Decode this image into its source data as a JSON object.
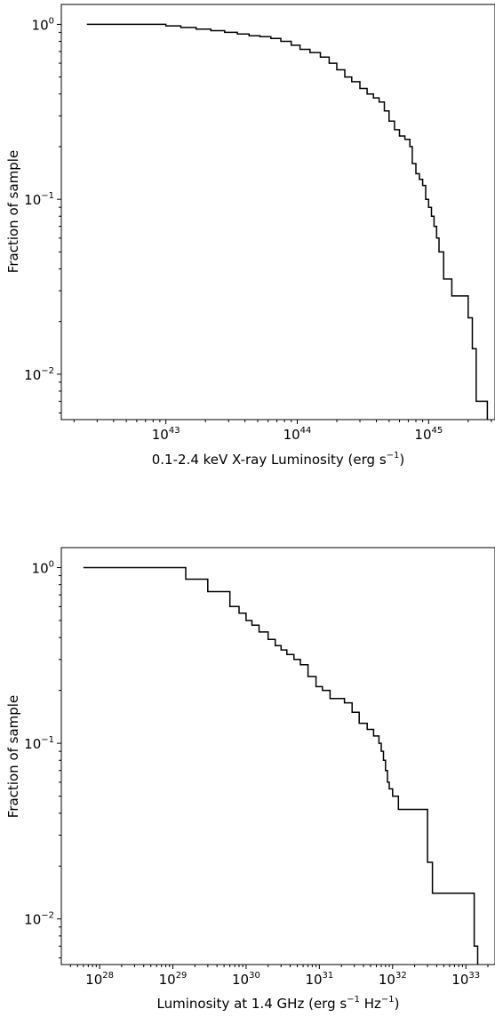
{
  "chart_data": [
    {
      "type": "line",
      "step": true,
      "xscale": "log",
      "yscale": "log",
      "xlabel_parts": [
        "0.1-2.4 keV X-ray Luminosity (erg s",
        "−1",
        ")"
      ],
      "ylabel": "Fraction of sample",
      "xlim": [
        1.6e+42,
        3.2e+45
      ],
      "ylim": [
        0.0055,
        1.3
      ],
      "xticks": [
        {
          "base": "10",
          "exp": "43",
          "value": 1e+43
        },
        {
          "base": "10",
          "exp": "44",
          "value": 1e+44
        },
        {
          "base": "10",
          "exp": "45",
          "value": 1e+45
        }
      ],
      "yticks": [
        {
          "base": "10",
          "exp": "0",
          "value": 1
        },
        {
          "base": "10",
          "exp": "−1",
          "value": 0.1
        },
        {
          "base": "10",
          "exp": "−2",
          "value": 0.01
        }
      ],
      "series": [
        {
          "x": [
            2.5e+42,
            1e+43,
            1.3e+43,
            1.7e+43,
            2.2e+43,
            2.8e+43,
            3.5e+43,
            4.3e+43,
            5.2e+43,
            6.3e+43,
            7.5e+43,
            9e+43,
            1.05e+44,
            1.25e+44,
            1.5e+44,
            1.75e+44,
            2e+44,
            2.3e+44,
            2.6e+44,
            3e+44,
            3.4e+44,
            3.8e+44,
            4.2e+44,
            4.6e+44,
            5e+44,
            5.5e+44,
            6e+44,
            6.6e+44,
            7.2e+44,
            7.5e+44,
            8e+44,
            8.5e+44,
            9e+44,
            9.5e+44,
            1e+45,
            1.05e+45,
            1.1e+45,
            1.15e+45,
            1.2e+45,
            1.3e+45,
            1.5e+45,
            1.6e+45,
            2e+45,
            2.15e+45,
            2.3e+45,
            2.8e+45
          ],
          "y": [
            1.0,
            0.98,
            0.96,
            0.94,
            0.92,
            0.9,
            0.88,
            0.86,
            0.85,
            0.83,
            0.8,
            0.76,
            0.72,
            0.69,
            0.65,
            0.6,
            0.55,
            0.5,
            0.47,
            0.43,
            0.4,
            0.38,
            0.36,
            0.32,
            0.28,
            0.25,
            0.23,
            0.22,
            0.2,
            0.16,
            0.14,
            0.13,
            0.12,
            0.1,
            0.09,
            0.08,
            0.07,
            0.06,
            0.05,
            0.035,
            0.028,
            0.028,
            0.021,
            0.014,
            0.007,
            0.007
          ]
        }
      ]
    },
    {
      "type": "line",
      "step": true,
      "xscale": "log",
      "yscale": "log",
      "xlabel_parts": [
        "Luminosity at 1.4 GHz (erg s",
        "−1",
        " Hz",
        "−1",
        ")"
      ],
      "ylabel": "Fraction of sample",
      "xlim": [
        3e+27,
        2.5e+33
      ],
      "ylim": [
        0.0055,
        1.3
      ],
      "xticks": [
        {
          "base": "10",
          "exp": "28",
          "value": 1e+28
        },
        {
          "base": "10",
          "exp": "29",
          "value": 1e+29
        },
        {
          "base": "10",
          "exp": "30",
          "value": 1e+30
        },
        {
          "base": "10",
          "exp": "31",
          "value": 1e+31
        },
        {
          "base": "10",
          "exp": "32",
          "value": 1e+32
        },
        {
          "base": "10",
          "exp": "33",
          "value": 1e+33
        }
      ],
      "yticks": [
        {
          "base": "10",
          "exp": "0",
          "value": 1
        },
        {
          "base": "10",
          "exp": "−1",
          "value": 0.1
        },
        {
          "base": "10",
          "exp": "−2",
          "value": 0.01
        }
      ],
      "series": [
        {
          "x": [
            6e+27,
            1.5e+29,
            3e+29,
            6e+29,
            8e+29,
            1e+30,
            1.2e+30,
            1.5e+30,
            2e+30,
            2.5e+30,
            3e+30,
            3.6e+30,
            4.5e+30,
            5.5e+30,
            7e+30,
            9e+30,
            1.1e+31,
            1.4e+31,
            1.8e+31,
            2.2e+31,
            2.8e+31,
            3.5e+31,
            4.5e+31,
            5.5e+31,
            6.5e+31,
            7e+31,
            7.5e+31,
            8e+31,
            8.5e+31,
            9e+31,
            1e+32,
            1.2e+32,
            1.5e+32,
            2e+32,
            3e+32,
            3.3e+32,
            3.5e+32,
            4e+32,
            1.3e+33,
            1.45e+33
          ],
          "y": [
            1.0,
            0.86,
            0.73,
            0.6,
            0.55,
            0.5,
            0.47,
            0.43,
            0.39,
            0.36,
            0.34,
            0.32,
            0.3,
            0.28,
            0.24,
            0.21,
            0.2,
            0.18,
            0.18,
            0.17,
            0.15,
            0.13,
            0.12,
            0.11,
            0.1,
            0.09,
            0.08,
            0.07,
            0.06,
            0.055,
            0.05,
            0.042,
            0.042,
            0.042,
            0.021,
            0.021,
            0.014,
            0.014,
            0.007,
            0.007
          ]
        }
      ]
    }
  ]
}
